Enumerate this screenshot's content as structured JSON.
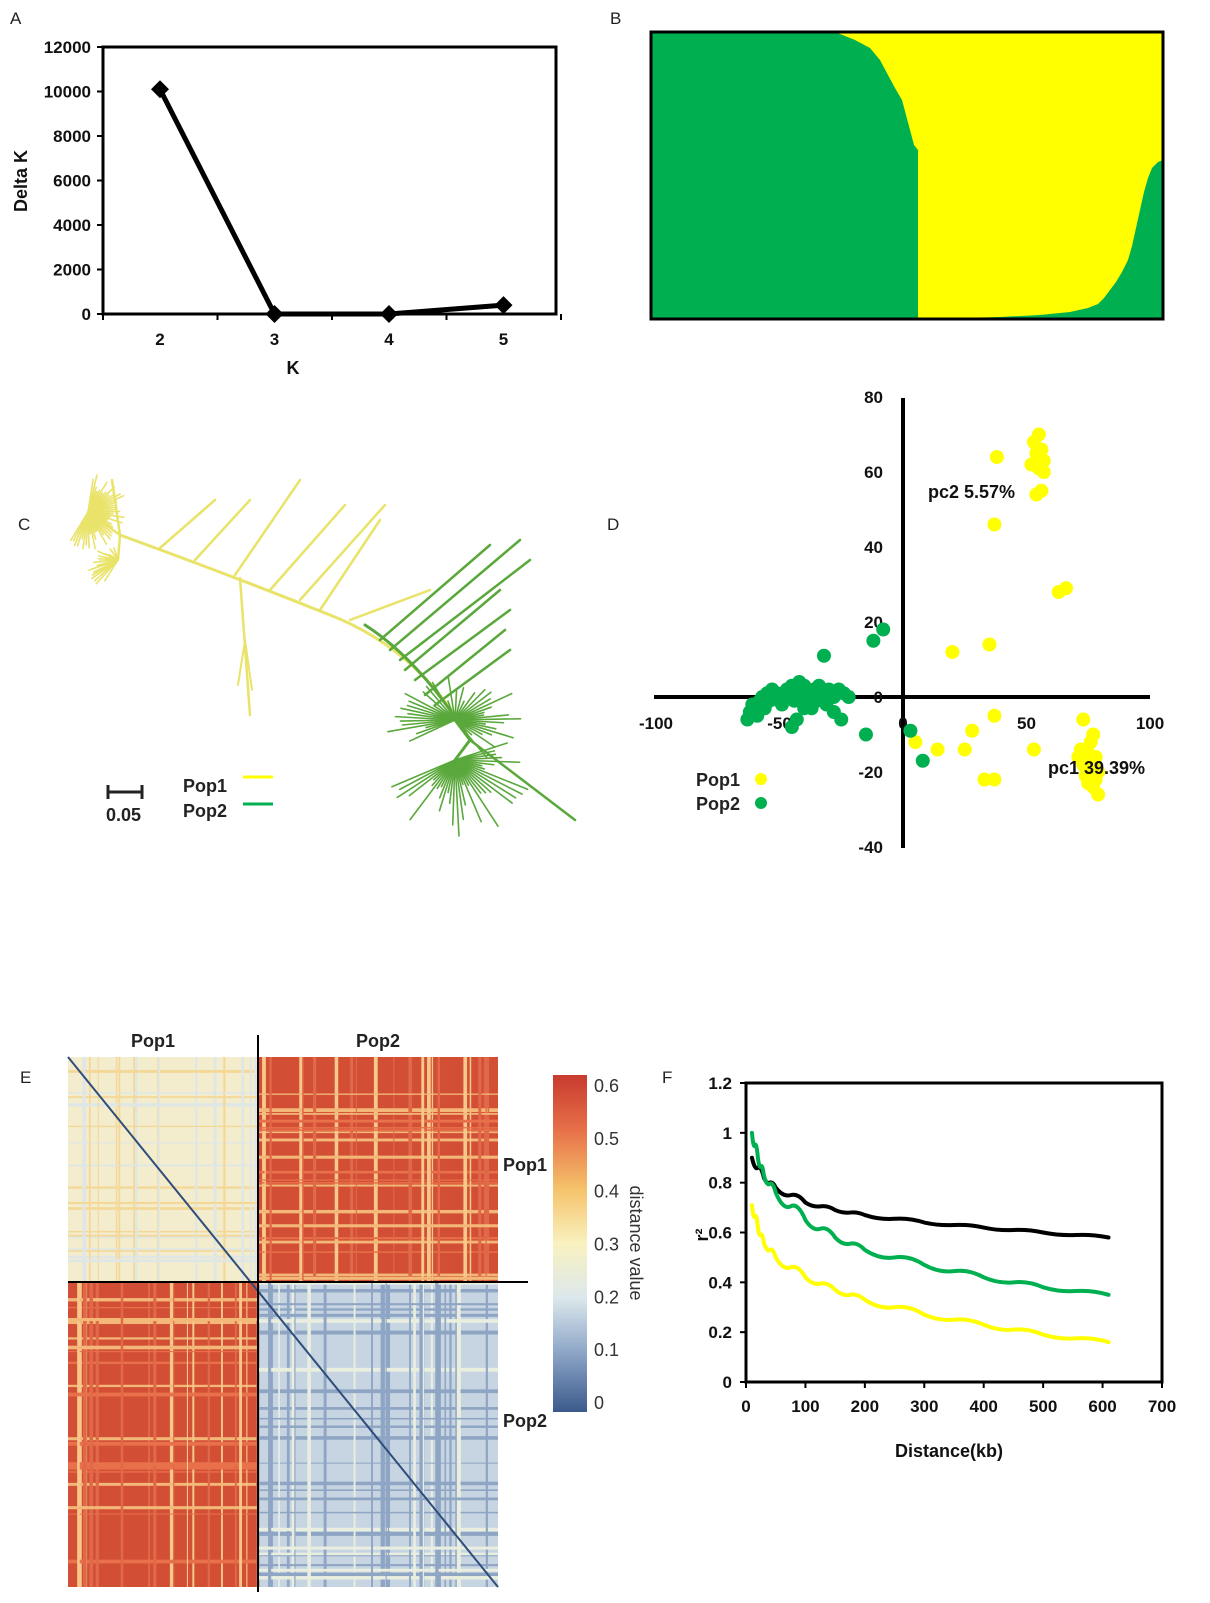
{
  "panels": {
    "A": "A",
    "B": "B",
    "C": "C",
    "D": "D",
    "E": "E",
    "F": "F"
  },
  "colors": {
    "pop1": "#ffff00",
    "pop2": "#00b050",
    "tree_pop1": "#e9e36a",
    "tree_pop2": "#5aa83c",
    "line_black": "#000000"
  },
  "chart_data": [
    {
      "id": "A",
      "type": "line",
      "x": [
        2,
        3,
        4,
        5
      ],
      "values": [
        10100,
        0,
        0,
        400
      ],
      "xlabel": "K",
      "ylabel": "Delta K",
      "xticks": [
        "2",
        "3",
        "4",
        "5"
      ],
      "yticks": [
        "0",
        "2000",
        "4000",
        "6000",
        "8000",
        "10000",
        "12000"
      ],
      "ylim": [
        0,
        12000
      ],
      "marker": "diamond"
    },
    {
      "id": "B",
      "type": "bar",
      "stacked": true,
      "description_series": [
        "Pop2 (green)",
        "Pop1 (yellow)"
      ],
      "ylim": [
        0,
        1
      ]
    },
    {
      "id": "C",
      "type": "tree",
      "legend": [
        {
          "label": "Pop1",
          "color": "#ffff00"
        },
        {
          "label": "Pop2",
          "color": "#00b050"
        }
      ],
      "scale_label": "0.05"
    },
    {
      "id": "D",
      "type": "scatter",
      "xlim": [
        -100,
        100
      ],
      "ylim": [
        -40,
        80
      ],
      "xticks": [
        "-100",
        "-50",
        "0",
        "50",
        "100"
      ],
      "yticks": [
        "-40",
        "-20",
        "0",
        "20",
        "40",
        "60",
        "80"
      ],
      "xlabel": "pc1 39.39%",
      "ylabel": "pc2 5.57%",
      "series": [
        {
          "name": "Pop1",
          "color": "#ffff00",
          "points": [
            [
              55,
              70
            ],
            [
              53,
              68
            ],
            [
              56,
              66
            ],
            [
              54,
              65
            ],
            [
              57,
              63
            ],
            [
              52,
              62
            ],
            [
              55,
              61
            ],
            [
              57,
              60
            ],
            [
              38,
              64
            ],
            [
              56,
              55
            ],
            [
              54,
              54
            ],
            [
              37,
              46
            ],
            [
              66,
              29
            ],
            [
              63,
              28
            ],
            [
              20,
              12
            ],
            [
              35,
              14
            ],
            [
              5,
              -12
            ],
            [
              14,
              -14
            ],
            [
              28,
              -9
            ],
            [
              37,
              -5
            ],
            [
              25,
              -14
            ],
            [
              53,
              -14
            ],
            [
              33,
              -22
            ],
            [
              37,
              -22
            ],
            [
              73,
              -6
            ],
            [
              71,
              -16
            ],
            [
              75,
              -15
            ],
            [
              77,
              -18
            ],
            [
              76,
              -20
            ],
            [
              78,
              -22
            ],
            [
              74,
              -19
            ],
            [
              72,
              -14
            ],
            [
              77,
              -24
            ],
            [
              79,
              -26
            ],
            [
              75,
              -23
            ],
            [
              76,
              -12
            ],
            [
              78,
              -16
            ],
            [
              74,
              -21
            ],
            [
              77,
              -10
            ],
            [
              79,
              -20
            ],
            [
              73,
              -18
            ]
          ]
        },
        {
          "name": "Pop2",
          "color": "#00b050",
          "points": [
            [
              -63,
              -6
            ],
            [
              -62,
              -4
            ],
            [
              -60,
              -3
            ],
            [
              -58,
              -1
            ],
            [
              -57,
              0
            ],
            [
              -55,
              1
            ],
            [
              -53,
              2
            ],
            [
              -52,
              0
            ],
            [
              -50,
              -1
            ],
            [
              -48,
              1
            ],
            [
              -47,
              2
            ],
            [
              -45,
              3
            ],
            [
              -43,
              2
            ],
            [
              -42,
              4
            ],
            [
              -40,
              3
            ],
            [
              -38,
              1
            ],
            [
              -36,
              2
            ],
            [
              -34,
              3
            ],
            [
              -32,
              1
            ],
            [
              -30,
              2
            ],
            [
              -28,
              0
            ],
            [
              -26,
              2
            ],
            [
              -24,
              1
            ],
            [
              -22,
              0
            ],
            [
              -61,
              -2
            ],
            [
              -59,
              -5
            ],
            [
              -56,
              -3
            ],
            [
              -54,
              -1
            ],
            [
              -51,
              1
            ],
            [
              -49,
              -2
            ],
            [
              -46,
              0
            ],
            [
              -44,
              -1
            ],
            [
              -41,
              1
            ],
            [
              -39,
              0
            ],
            [
              -37,
              -3
            ],
            [
              -35,
              -1
            ],
            [
              -33,
              0
            ],
            [
              -31,
              -2
            ],
            [
              -45,
              -8
            ],
            [
              -43,
              -6
            ],
            [
              -40,
              -3
            ],
            [
              -28,
              -4
            ],
            [
              -25,
              -6
            ],
            [
              -32,
              11
            ],
            [
              -15,
              -10
            ],
            [
              -12,
              15
            ],
            [
              -8,
              18
            ],
            [
              3,
              -9
            ],
            [
              8,
              -17
            ]
          ]
        }
      ]
    },
    {
      "id": "E",
      "type": "heatmap",
      "row_labels": [
        "Pop1",
        "Pop2"
      ],
      "col_labels": [
        "Pop1",
        "Pop2"
      ],
      "colorbar_label": "distance value",
      "colorbar_ticks": [
        "0",
        "0.1",
        "0.2",
        "0.3",
        "0.4",
        "0.5",
        "0.6"
      ],
      "range": [
        0,
        0.6
      ]
    },
    {
      "id": "F",
      "type": "line",
      "xlabel": "Distance(kb)",
      "ylabel": "r²",
      "xlim": [
        0,
        700
      ],
      "ylim": [
        0,
        1.2
      ],
      "xticks": [
        "0",
        "100",
        "200",
        "300",
        "400",
        "500",
        "600",
        "700"
      ],
      "yticks": [
        "0",
        "0.2",
        "0.4",
        "0.6",
        "0.8",
        "1",
        "1.2"
      ],
      "series": [
        {
          "color": "#000000",
          "x": [
            10,
            30,
            50,
            100,
            150,
            200,
            300,
            400,
            500,
            610
          ],
          "values": [
            0.9,
            0.82,
            0.78,
            0.72,
            0.69,
            0.67,
            0.64,
            0.62,
            0.6,
            0.58
          ]
        },
        {
          "color": "#00b050",
          "x": [
            10,
            20,
            30,
            50,
            100,
            150,
            200,
            300,
            400,
            500,
            610
          ],
          "values": [
            1.0,
            0.9,
            0.83,
            0.76,
            0.65,
            0.58,
            0.53,
            0.47,
            0.42,
            0.38,
            0.35
          ]
        },
        {
          "color": "#ffff00",
          "x": [
            10,
            20,
            30,
            50,
            100,
            150,
            200,
            300,
            400,
            500,
            610
          ],
          "values": [
            0.71,
            0.62,
            0.56,
            0.5,
            0.42,
            0.37,
            0.33,
            0.27,
            0.23,
            0.19,
            0.16
          ]
        }
      ]
    }
  ]
}
